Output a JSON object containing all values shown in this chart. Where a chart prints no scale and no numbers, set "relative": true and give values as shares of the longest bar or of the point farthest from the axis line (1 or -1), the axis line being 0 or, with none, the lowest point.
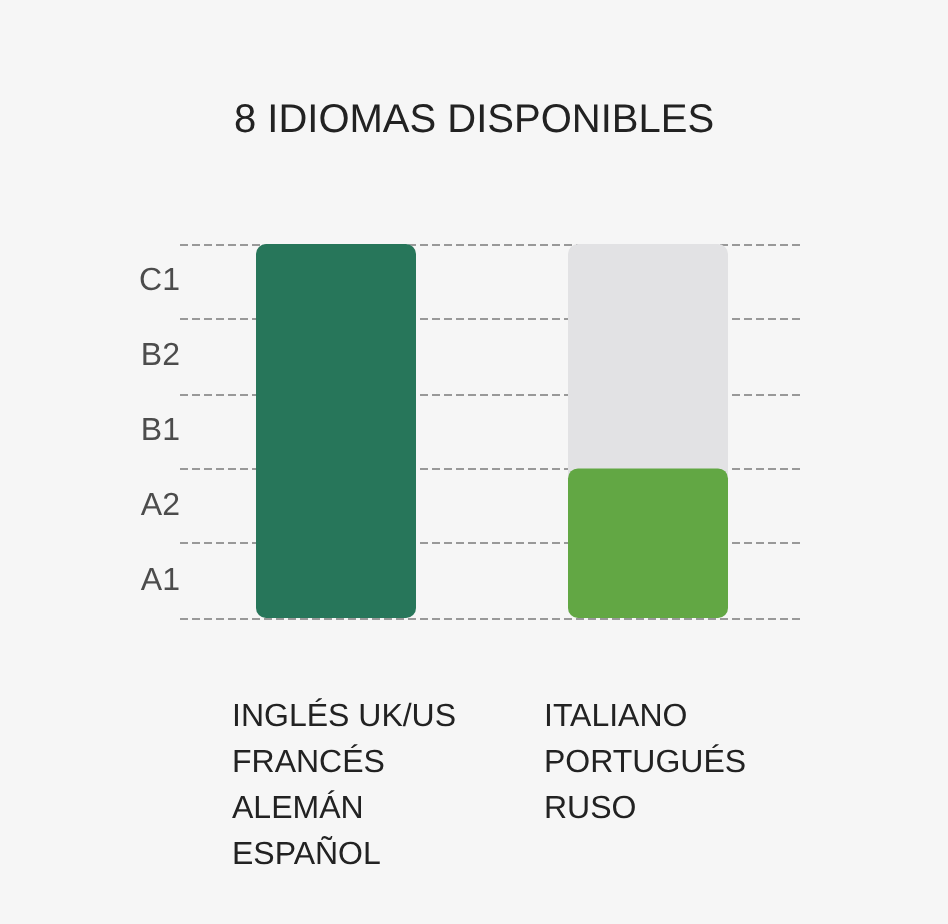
{
  "chart_data": {
    "type": "bar",
    "title": "8 IDIOMAS DISPONIBLES",
    "categories": [
      "INGLÉS UK/US\nFRANCÉS\nALEMÁN\nESPAÑOL",
      "ITALIANO\nPORTUGUÉS\nRUSO"
    ],
    "values": [
      1,
      0.4
    ],
    "colors": [
      "#27765a",
      "#62a744"
    ],
    "relative": true,
    "annotations": [
      "C1",
      "B2",
      "B1",
      "A2",
      "A1"
    ],
    "ref_lines": [
      {
        "axis": "y",
        "value": 0,
        "line_style": "dashed",
        "color": "#999999"
      },
      {
        "axis": "y",
        "value": 0.2,
        "line_style": "dashed",
        "color": "#999999"
      },
      {
        "axis": "y",
        "value": 0.4,
        "line_style": "dashed",
        "color": "#999999"
      },
      {
        "axis": "y",
        "value": 0.6,
        "line_style": "dashed",
        "color": "#999999"
      },
      {
        "axis": "y",
        "value": 0.8,
        "line_style": "dashed",
        "color": "#999999"
      },
      {
        "axis": "y",
        "value": 1,
        "line_style": "dashed",
        "color": "#999999"
      }
    ]
  }
}
